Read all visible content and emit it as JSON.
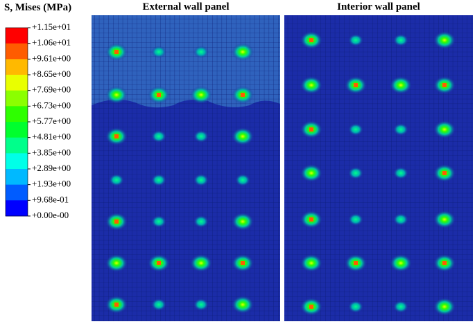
{
  "legend": {
    "title": "S, Mises (MPa)",
    "labels": [
      "+1.15e+01",
      "+1.06e+01",
      "+9.61e+00",
      "+8.65e+00",
      "+7.69e+00",
      "+6.73e+00",
      "+5.77e+00",
      "+4.81e+00",
      "+3.85e+00",
      "+2.89e+00",
      "+1.93e+00",
      "+9.68e-01",
      "+0.00e-00"
    ],
    "colors": [
      "#ff0000",
      "#ff5c00",
      "#ffb900",
      "#e9ff00",
      "#8bff00",
      "#2eff00",
      "#00ff2e",
      "#00ff8b",
      "#00ffe8",
      "#00b9ff",
      "#005cff",
      "#0000ff"
    ]
  },
  "panels": [
    {
      "title": "External wall panel"
    },
    {
      "title": "Interior wall panel"
    }
  ]
}
